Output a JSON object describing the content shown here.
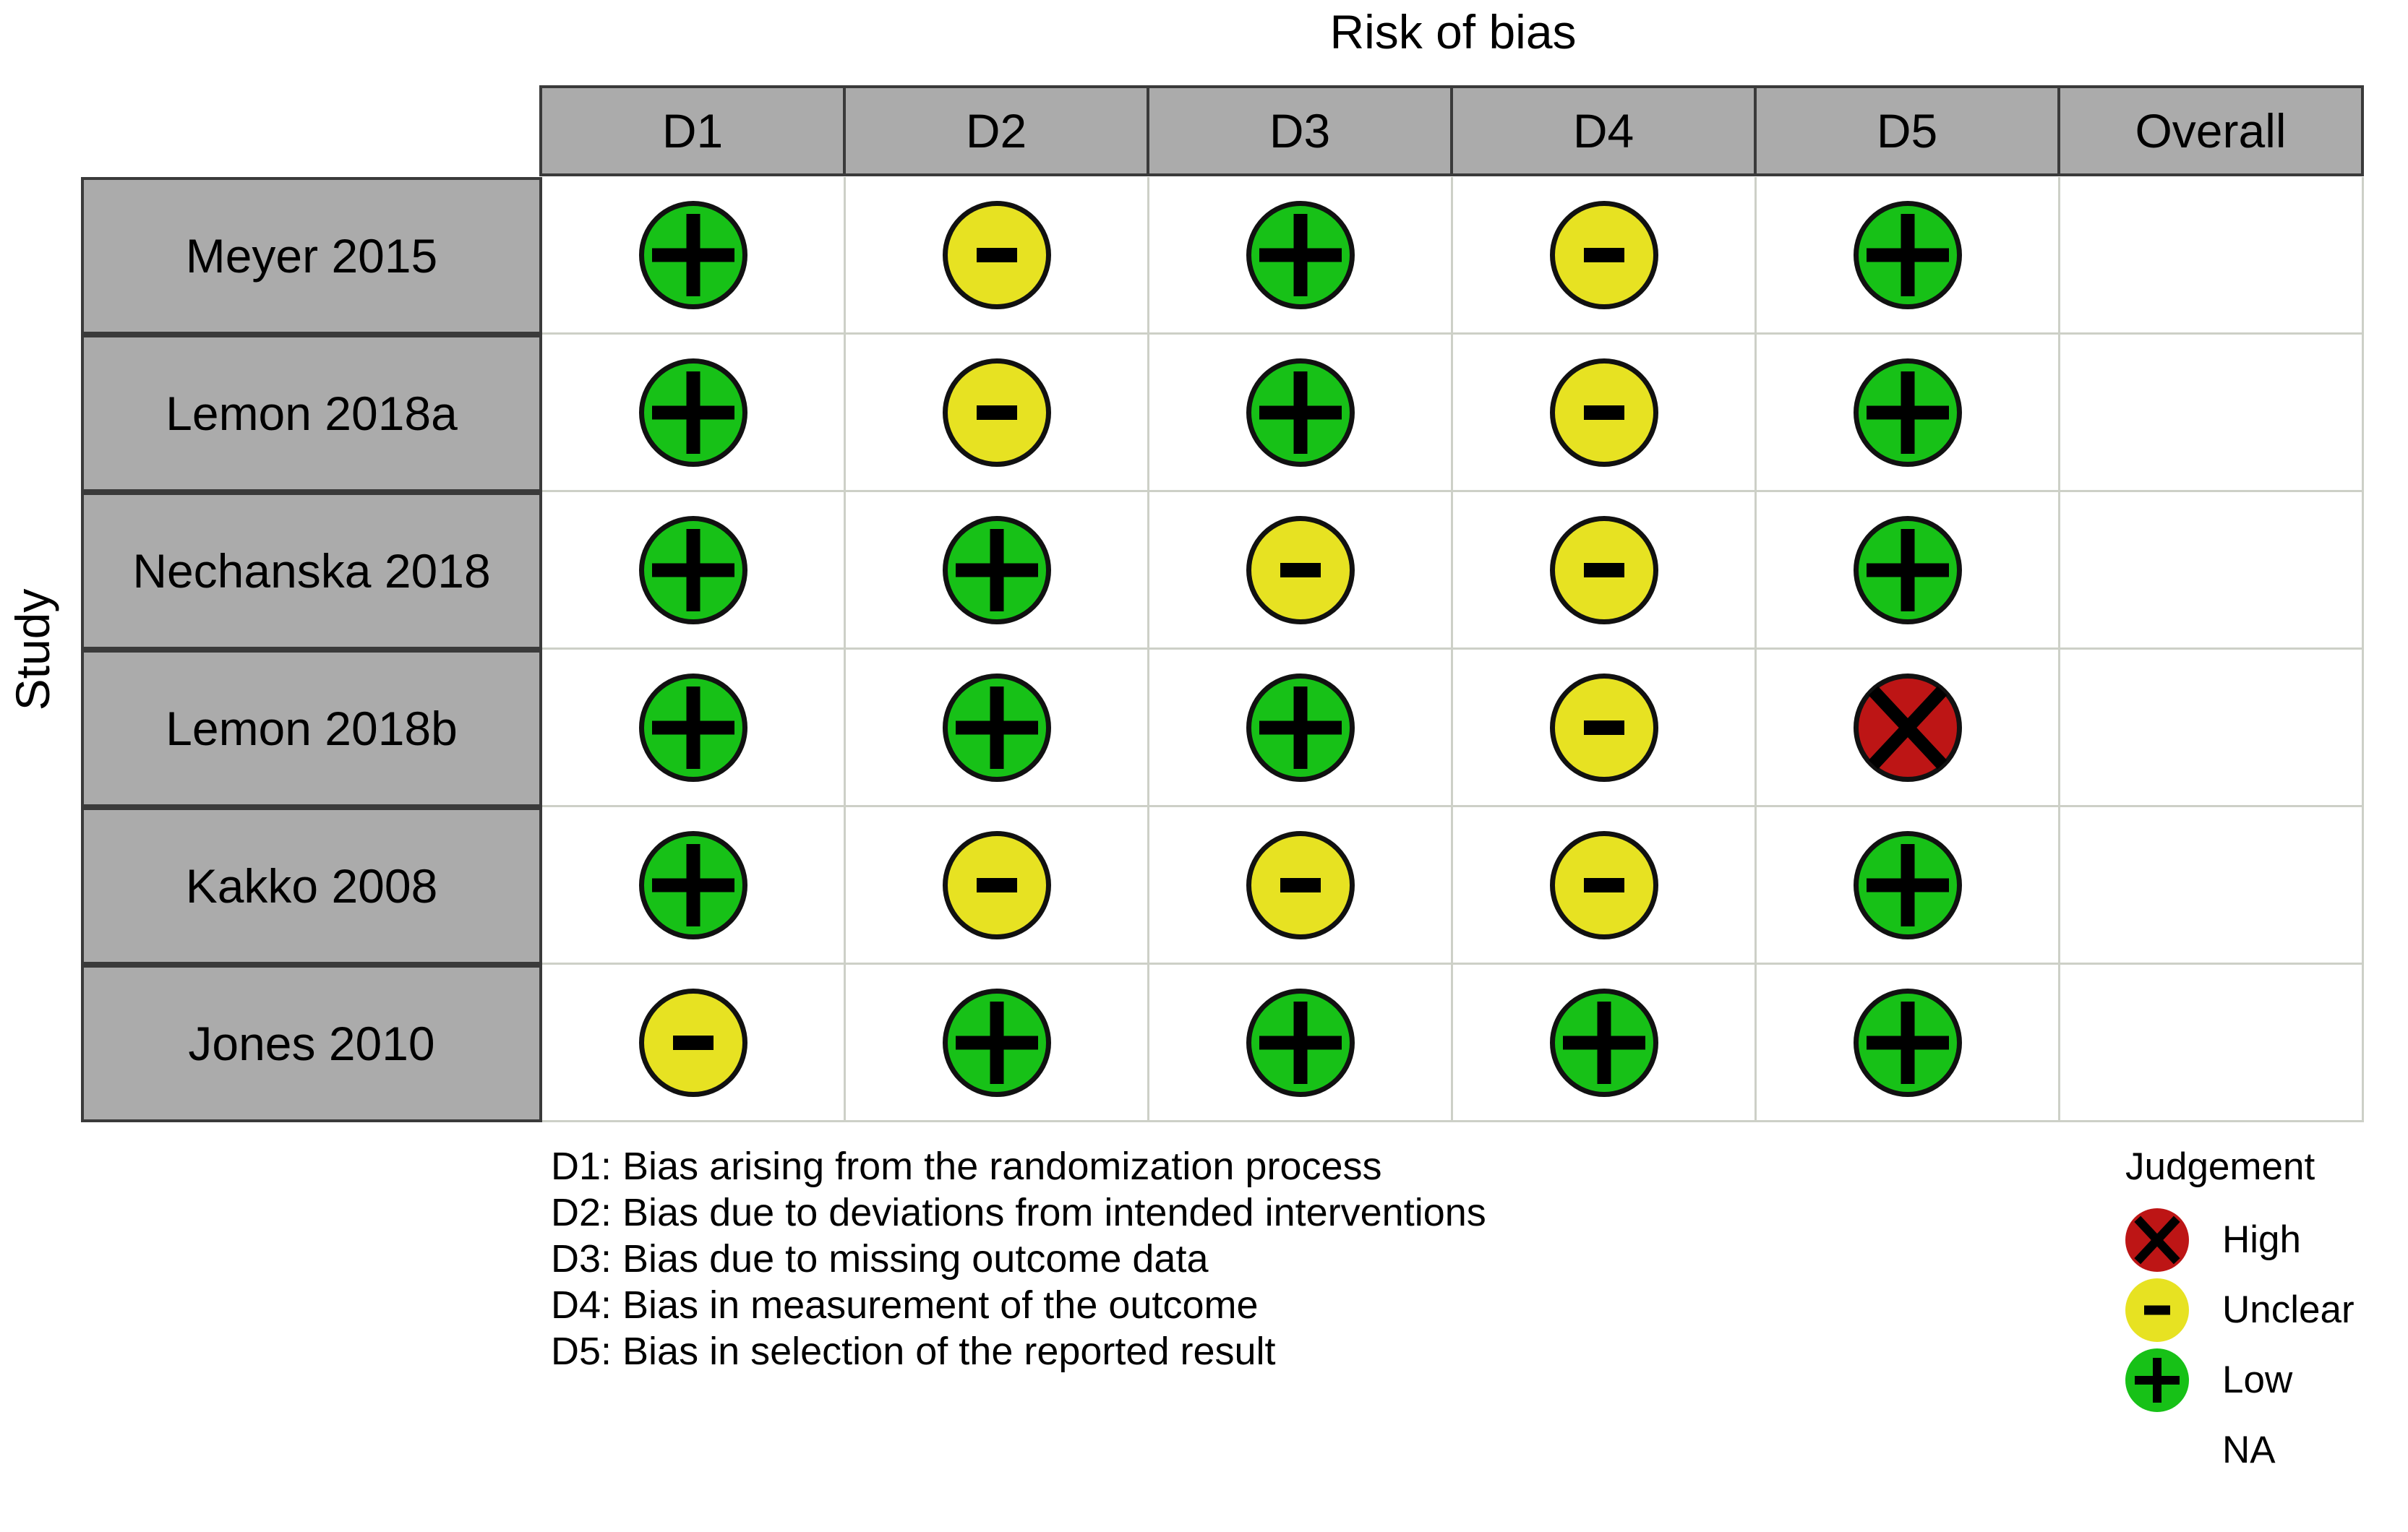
{
  "chart_data": {
    "type": "table",
    "title": "Risk of bias",
    "ylabel": "Study",
    "columns": [
      "D1",
      "D2",
      "D3",
      "D4",
      "D5",
      "Overall"
    ],
    "rows": [
      {
        "study": "Meyer 2015",
        "judgements": [
          "low",
          "unclear",
          "low",
          "unclear",
          "low",
          "na"
        ]
      },
      {
        "study": "Lemon 2018a",
        "judgements": [
          "low",
          "unclear",
          "low",
          "unclear",
          "low",
          "na"
        ]
      },
      {
        "study": "Nechanska 2018",
        "judgements": [
          "low",
          "low",
          "unclear",
          "unclear",
          "low",
          "na"
        ]
      },
      {
        "study": "Lemon 2018b",
        "judgements": [
          "low",
          "low",
          "low",
          "unclear",
          "high",
          "na"
        ]
      },
      {
        "study": "Kakko 2008",
        "judgements": [
          "low",
          "unclear",
          "unclear",
          "unclear",
          "low",
          "na"
        ]
      },
      {
        "study": "Jones 2010",
        "judgements": [
          "unclear",
          "low",
          "low",
          "low",
          "low",
          "na"
        ]
      }
    ],
    "judgement_symbols": {
      "low": "+",
      "unclear": "-",
      "high": "X",
      "na": ""
    },
    "judgement_colors": {
      "low": "#17c117",
      "unclear": "#e7e222",
      "high": "#bd1515",
      "na": "#ffffff"
    },
    "footnotes": [
      "D1: Bias arising from the randomization process",
      "D2: Bias due to deviations from intended interventions",
      "D3: Bias due to missing outcome data",
      "D4: Bias in measurement of the outcome",
      "D5: Bias in selection of the reported result"
    ],
    "legend": {
      "title": "Judgement",
      "items": [
        {
          "judgement": "high",
          "label": "High"
        },
        {
          "judgement": "unclear",
          "label": "Unclear"
        },
        {
          "judgement": "low",
          "label": "Low"
        },
        {
          "judgement": "na",
          "label": "NA"
        }
      ]
    },
    "style_colors": {
      "header_bg": "#ababab",
      "table_border": "#3a3a3a",
      "grid_line": "#cdd0c7",
      "icon_outline": "#111111"
    }
  }
}
